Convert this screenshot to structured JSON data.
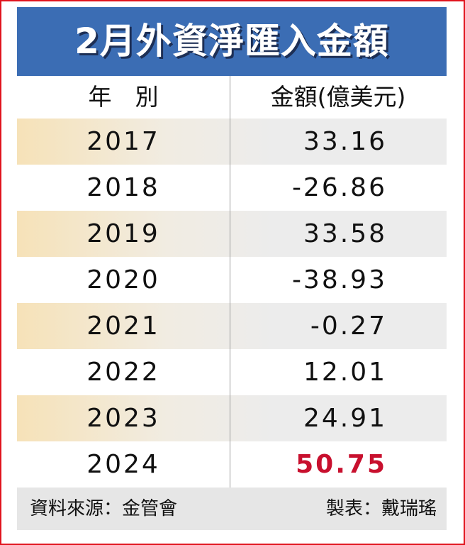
{
  "title": "2月外資淨匯入金額",
  "table": {
    "header": [
      "年　別",
      "金額(億美元)"
    ],
    "rows": [
      {
        "year": "2017",
        "amount": "33.16"
      },
      {
        "year": "2018",
        "amount": "-26.86"
      },
      {
        "year": "2019",
        "amount": "33.58"
      },
      {
        "year": "2020",
        "amount": "-38.93"
      },
      {
        "year": "2021",
        "amount": "-0.27"
      },
      {
        "year": "2022",
        "amount": "12.01"
      },
      {
        "year": "2023",
        "amount": "24.91"
      },
      {
        "year": "2024",
        "amount": "50.75",
        "color": "#c8102e"
      }
    ]
  },
  "footer": {
    "source": "資料來源：金管會",
    "credit": "製表：戴瑞瑤"
  }
}
